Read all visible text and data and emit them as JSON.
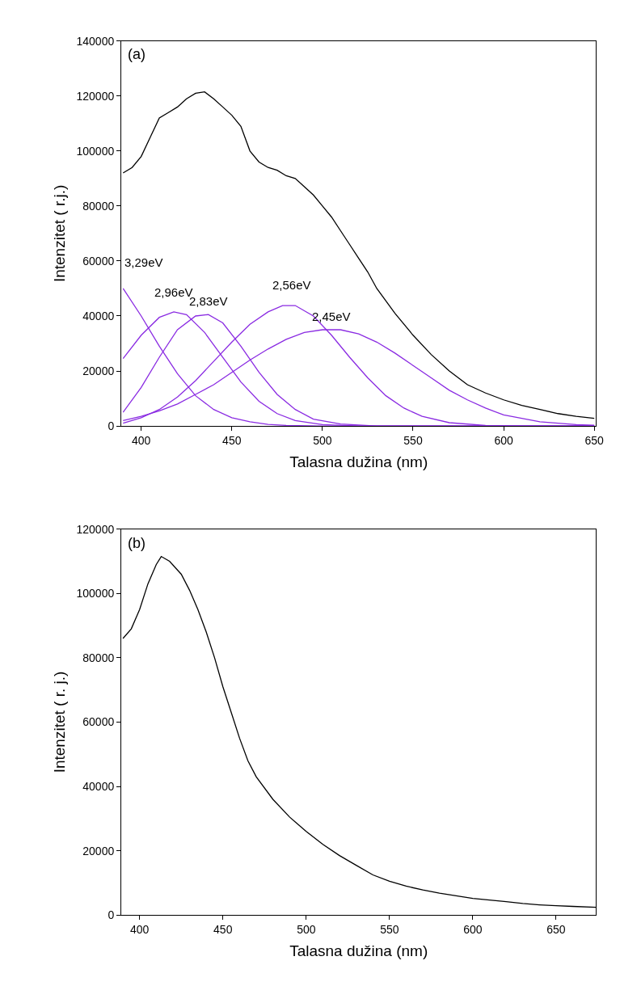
{
  "chart_data": [
    {
      "type": "line",
      "title": "(a)",
      "xlabel": "Talasna dužina (nm)",
      "ylabel": "Intenzitet ( r.j.)",
      "xlim": [
        389,
        651
      ],
      "xticks": [
        400,
        450,
        500,
        550,
        600,
        650
      ],
      "ylim": [
        0,
        140000
      ],
      "yticks": [
        0,
        20000,
        40000,
        60000,
        80000,
        100000,
        120000,
        140000
      ],
      "marker": "none",
      "line_style": "solid",
      "series": [
        {
          "color": "#000000",
          "x": [
            390,
            395,
            400,
            405,
            410,
            415,
            420,
            425,
            430,
            435,
            440,
            445,
            450,
            455,
            460,
            465,
            470,
            475,
            480,
            485,
            490,
            495,
            500,
            505,
            510,
            515,
            520,
            525,
            530,
            540,
            550,
            560,
            570,
            580,
            590,
            600,
            610,
            620,
            630,
            640,
            650
          ],
          "values": [
            92000,
            94000,
            98000,
            105000,
            112000,
            114000,
            116000,
            119000,
            121000,
            121500,
            119000,
            116000,
            113000,
            109000,
            100000,
            96000,
            94000,
            93000,
            91000,
            90000,
            87000,
            84000,
            80000,
            76000,
            71000,
            66000,
            61000,
            56000,
            50000,
            41000,
            33000,
            26000,
            20000,
            15000,
            12000,
            9500,
            7500,
            6000,
            4500,
            3500,
            2800
          ]
        },
        {
          "color": "#8a2be2",
          "x": [
            390,
            400,
            410,
            420,
            430,
            440,
            450,
            460,
            470,
            480,
            500,
            550,
            650
          ],
          "values": [
            50000,
            40000,
            29000,
            19000,
            11000,
            6000,
            3000,
            1500,
            600,
            200,
            0,
            0,
            0
          ]
        },
        {
          "color": "#8a2be2",
          "x": [
            390,
            400,
            410,
            418,
            425,
            435,
            445,
            455,
            465,
            475,
            485,
            500,
            520,
            650
          ],
          "values": [
            24500,
            33000,
            39500,
            41500,
            40500,
            34000,
            25000,
            16000,
            9000,
            4500,
            2000,
            500,
            0,
            0
          ]
        },
        {
          "color": "#8a2be2",
          "x": [
            390,
            400,
            410,
            420,
            430,
            437,
            445,
            455,
            465,
            475,
            485,
            495,
            510,
            530,
            650
          ],
          "values": [
            5000,
            14000,
            25000,
            35000,
            40000,
            40500,
            37500,
            29000,
            19500,
            11500,
            6000,
            2500,
            700,
            0,
            0
          ]
        },
        {
          "color": "#8a2be2",
          "x": [
            390,
            400,
            410,
            420,
            430,
            440,
            450,
            460,
            470,
            478,
            485,
            495,
            505,
            515,
            525,
            535,
            545,
            555,
            570,
            590,
            610,
            650
          ],
          "values": [
            1000,
            3000,
            6000,
            10500,
            16500,
            23500,
            30500,
            37000,
            41500,
            43800,
            43800,
            40000,
            33000,
            25000,
            17500,
            11000,
            6500,
            3500,
            1200,
            200,
            0,
            0
          ]
        },
        {
          "color": "#8a2be2",
          "x": [
            390,
            400,
            410,
            420,
            430,
            440,
            450,
            460,
            470,
            480,
            490,
            500,
            510,
            520,
            530,
            540,
            550,
            560,
            570,
            580,
            590,
            600,
            620,
            640,
            650
          ],
          "values": [
            2000,
            3500,
            5500,
            8000,
            11500,
            15000,
            19500,
            24000,
            28000,
            31500,
            34000,
            35000,
            35000,
            33500,
            30500,
            26500,
            22000,
            17500,
            13000,
            9500,
            6500,
            4000,
            1500,
            500,
            300
          ]
        }
      ],
      "annotations": [
        {
          "text": "3,29eV",
          "x": 390,
          "y": 50000
        },
        {
          "text": "2,96eV",
          "x": 418,
          "y": 41500
        },
        {
          "text": "2,83eV",
          "x": 437,
          "y": 40500
        },
        {
          "text": "2,56eV",
          "x": 483,
          "y": 44000
        },
        {
          "text": "2,45eV",
          "x": 505,
          "y": 35000
        }
      ]
    },
    {
      "type": "line",
      "title": "(b)",
      "xlabel": "Talasna dužina (nm)",
      "ylabel": "Intenzitet ( r. j.)",
      "xlim": [
        389,
        674
      ],
      "xticks": [
        400,
        450,
        500,
        550,
        600,
        650
      ],
      "ylim": [
        0,
        120000
      ],
      "yticks": [
        0,
        20000,
        40000,
        60000,
        80000,
        100000,
        120000
      ],
      "marker": "none",
      "line_style": "solid",
      "series": [
        {
          "color": "#000000",
          "x": [
            390,
            395,
            400,
            405,
            410,
            413,
            418,
            425,
            430,
            435,
            440,
            445,
            450,
            455,
            460,
            465,
            470,
            480,
            490,
            500,
            510,
            520,
            530,
            540,
            550,
            560,
            570,
            580,
            590,
            600,
            610,
            620,
            630,
            640,
            650,
            660,
            674
          ],
          "values": [
            86000,
            89000,
            95000,
            103000,
            109000,
            111500,
            110000,
            106000,
            101000,
            95000,
            88000,
            80000,
            71000,
            63000,
            55000,
            48000,
            43000,
            36000,
            30500,
            26000,
            22000,
            18500,
            15500,
            12500,
            10500,
            9000,
            7800,
            6800,
            6000,
            5200,
            4700,
            4200,
            3600,
            3200,
            2900,
            2700,
            2400
          ]
        }
      ]
    }
  ]
}
